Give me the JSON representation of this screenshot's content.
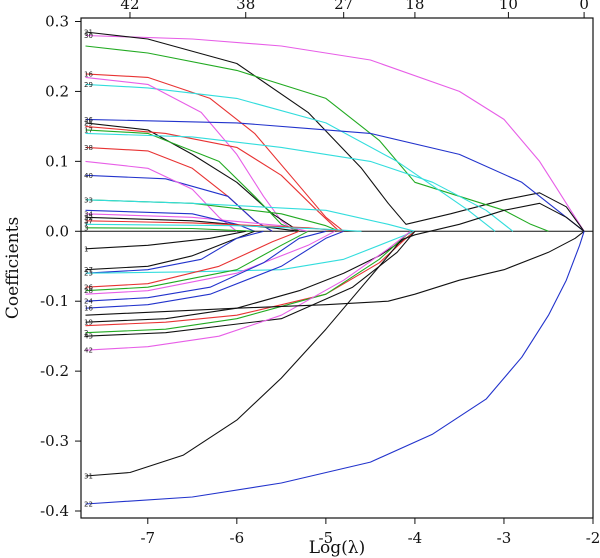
{
  "chart_data": {
    "type": "line",
    "title": "",
    "xlabel": "Log(λ)",
    "ylabel": "Coefficients",
    "xlim": [
      -7.75,
      -2.0
    ],
    "ylim": [
      -0.41,
      0.305
    ],
    "x_ticks": [
      "-7",
      "-6",
      "-5",
      "-4",
      "-3",
      "-2"
    ],
    "y_ticks": [
      "0.3",
      "0.2",
      "0.1",
      "0.0",
      "-0.1",
      "-0.2",
      "-0.3",
      "-0.4"
    ],
    "top_axis": {
      "label": "",
      "ticks": [
        {
          "x": -7.2,
          "label": "42"
        },
        {
          "x": -5.9,
          "label": "38"
        },
        {
          "x": -4.8,
          "label": "27"
        },
        {
          "x": -4.0,
          "label": "18"
        },
        {
          "x": -2.95,
          "label": "10"
        },
        {
          "x": -2.1,
          "label": "0"
        }
      ]
    },
    "grid": false,
    "legend": "none",
    "series": [
      {
        "name": "30",
        "color": "#e75ee7",
        "x": [
          -7.7,
          -6.5,
          -5.5,
          -4.5,
          -3.5,
          -3.0,
          -2.6,
          -2.4,
          -2.25,
          -2.1
        ],
        "values": [
          0.28,
          0.275,
          0.265,
          0.245,
          0.2,
          0.16,
          0.1,
          0.06,
          0.03,
          0.0
        ]
      },
      {
        "name": "21",
        "color": "#111111",
        "x": [
          -7.7,
          -7.0,
          -6.0,
          -5.2,
          -4.6,
          -4.3,
          -4.1,
          -3.6,
          -3.0,
          -2.6,
          -2.3,
          -2.1
        ],
        "values": [
          0.285,
          0.275,
          0.24,
          0.17,
          0.09,
          0.04,
          0.01,
          0.025,
          0.045,
          0.055,
          0.035,
          0.0
        ]
      },
      {
        "name": "",
        "color": "#22aa22",
        "x": [
          -7.7,
          -7.0,
          -6.0,
          -5.0,
          -4.4,
          -4.0,
          -3.5,
          -3.0,
          -2.7,
          -2.5
        ],
        "values": [
          0.265,
          0.255,
          0.23,
          0.19,
          0.13,
          0.07,
          0.05,
          0.03,
          0.01,
          0.0
        ]
      },
      {
        "name": "16",
        "color": "#e83333",
        "x": [
          -7.7,
          -7.0,
          -6.3,
          -5.8,
          -5.4,
          -5.0,
          -4.8
        ],
        "values": [
          0.225,
          0.22,
          0.19,
          0.14,
          0.08,
          0.02,
          0.0
        ]
      },
      {
        "name": "29",
        "color": "#33dddd",
        "x": [
          -7.7,
          -7.0,
          -6.0,
          -5.0,
          -4.2,
          -3.8,
          -3.4,
          -3.1
        ],
        "values": [
          0.21,
          0.205,
          0.19,
          0.155,
          0.1,
          0.065,
          0.03,
          0.0
        ]
      },
      {
        "name": "",
        "color": "#e75ee7",
        "x": [
          -7.7,
          -7.0,
          -6.4,
          -6.0,
          -5.7,
          -5.5,
          -5.35
        ],
        "values": [
          0.22,
          0.21,
          0.17,
          0.11,
          0.05,
          0.015,
          0.0
        ]
      },
      {
        "name": "36",
        "color": "#2233cc",
        "x": [
          -7.7,
          -6.0,
          -4.5,
          -3.5,
          -2.8,
          -2.4,
          -2.1
        ],
        "values": [
          0.16,
          0.155,
          0.14,
          0.11,
          0.07,
          0.03,
          0.0
        ]
      },
      {
        "name": "25",
        "color": "#111111",
        "x": [
          -7.7,
          -7.0,
          -6.5,
          -6.0,
          -5.6,
          -5.3
        ],
        "values": [
          0.155,
          0.145,
          0.11,
          0.07,
          0.025,
          0.0
        ]
      },
      {
        "name": "",
        "color": "#e83333",
        "x": [
          -7.7,
          -6.8,
          -6.0,
          -5.5,
          -5.1,
          -4.85
        ],
        "values": [
          0.15,
          0.14,
          0.12,
          0.08,
          0.03,
          0.0
        ]
      },
      {
        "name": "17",
        "color": "#22aa22",
        "x": [
          -7.7,
          -7.0,
          -6.2,
          -5.8,
          -5.5,
          -5.3
        ],
        "values": [
          0.145,
          0.14,
          0.1,
          0.05,
          0.01,
          0.0
        ]
      },
      {
        "name": "38",
        "color": "#e83333",
        "x": [
          -7.7,
          -7.0,
          -6.5,
          -6.1,
          -5.8,
          -5.6
        ],
        "values": [
          0.12,
          0.115,
          0.09,
          0.05,
          0.015,
          0.0
        ]
      },
      {
        "name": "",
        "color": "#33dddd",
        "x": [
          -7.7,
          -6.5,
          -5.5,
          -4.5,
          -3.8,
          -3.2,
          -2.9
        ],
        "values": [
          0.14,
          0.135,
          0.12,
          0.1,
          0.07,
          0.03,
          0.0
        ]
      },
      {
        "name": "40",
        "color": "#2233cc",
        "x": [
          -7.7,
          -6.8,
          -6.1,
          -5.8,
          -5.6
        ],
        "values": [
          0.08,
          0.075,
          0.05,
          0.015,
          0.0
        ]
      },
      {
        "name": "",
        "color": "#e75ee7",
        "x": [
          -7.7,
          -7.0,
          -6.5,
          -6.2,
          -6.0
        ],
        "values": [
          0.1,
          0.09,
          0.06,
          0.02,
          0.0
        ]
      },
      {
        "name": "33",
        "color": "#22aa22",
        "x": [
          -7.7,
          -6.5,
          -5.5,
          -5.0,
          -4.85
        ],
        "values": [
          0.045,
          0.04,
          0.025,
          0.008,
          0.0
        ]
      },
      {
        "name": "",
        "color": "#33dddd",
        "x": [
          -7.7,
          -6.5,
          -5.0,
          -4.3,
          -4.0
        ],
        "values": [
          0.045,
          0.04,
          0.03,
          0.01,
          0.0
        ]
      },
      {
        "name": "34",
        "color": "#e75ee7",
        "x": [
          -7.7,
          -6.5,
          -5.5,
          -5.2
        ],
        "values": [
          0.025,
          0.02,
          0.008,
          0.0
        ]
      },
      {
        "name": "",
        "color": "#2233cc",
        "x": [
          -7.7,
          -6.5,
          -6.0,
          -5.8
        ],
        "values": [
          0.03,
          0.025,
          0.01,
          0.0
        ]
      },
      {
        "name": "32",
        "color": "#111111",
        "x": [
          -7.7,
          -6.5,
          -5.6,
          -5.3
        ],
        "values": [
          0.02,
          0.015,
          0.005,
          0.0
        ]
      },
      {
        "name": "37",
        "color": "#e83333",
        "x": [
          -7.7,
          -6.5,
          -5.2,
          -4.8
        ],
        "values": [
          0.015,
          0.012,
          0.005,
          0.0
        ]
      },
      {
        "name": "7",
        "color": "#33dddd",
        "x": [
          -7.7,
          -6.0,
          -5.0,
          -4.6
        ],
        "values": [
          0.01,
          0.008,
          0.003,
          0.0
        ]
      },
      {
        "name": "3",
        "color": "#22aa22",
        "x": [
          -7.7,
          -6.5,
          -5.8
        ],
        "values": [
          0.005,
          0.004,
          0.0
        ]
      },
      {
        "name": "1",
        "color": "#111111",
        "x": [
          -7.7,
          -7.0,
          -6.3,
          -5.9
        ],
        "values": [
          -0.025,
          -0.02,
          -0.01,
          0.0
        ]
      },
      {
        "name": "27",
        "color": "#111111",
        "x": [
          -7.7,
          -7.0,
          -6.5,
          -6.0,
          -5.8
        ],
        "values": [
          -0.055,
          -0.05,
          -0.035,
          -0.01,
          0.0
        ]
      },
      {
        "name": "23",
        "color": "#2233cc",
        "x": [
          -7.7,
          -7.0,
          -6.4,
          -6.0,
          -5.7
        ],
        "values": [
          -0.06,
          -0.055,
          -0.04,
          -0.01,
          0.0
        ]
      },
      {
        "name": "",
        "color": "#33dddd",
        "x": [
          -7.7,
          -6.5,
          -5.5,
          -4.8,
          -4.2,
          -4.0
        ],
        "values": [
          -0.06,
          -0.058,
          -0.055,
          -0.04,
          -0.01,
          0.0
        ]
      },
      {
        "name": "26",
        "color": "#e83333",
        "x": [
          -7.7,
          -7.0,
          -6.2,
          -5.6,
          -5.3
        ],
        "values": [
          -0.08,
          -0.075,
          -0.05,
          -0.015,
          0.0
        ]
      },
      {
        "name": "28",
        "color": "#22aa22",
        "x": [
          -7.7,
          -7.0,
          -6.0,
          -5.5,
          -5.2
        ],
        "values": [
          -0.085,
          -0.08,
          -0.055,
          -0.02,
          0.0
        ]
      },
      {
        "name": "",
        "color": "#e75ee7",
        "x": [
          -7.7,
          -7.0,
          -6.0,
          -5.2,
          -4.9
        ],
        "values": [
          -0.09,
          -0.085,
          -0.06,
          -0.02,
          0.0
        ]
      },
      {
        "name": "24",
        "color": "#2233cc",
        "x": [
          -7.7,
          -7.0,
          -6.3,
          -5.7,
          -5.3,
          -5.0
        ],
        "values": [
          -0.1,
          -0.095,
          -0.08,
          -0.045,
          -0.01,
          0.0
        ]
      },
      {
        "name": "16",
        "color": "#2233cc",
        "x": [
          -7.7,
          -7.0,
          -6.3,
          -5.5,
          -5.0,
          -4.8
        ],
        "values": [
          -0.11,
          -0.105,
          -0.09,
          -0.05,
          -0.01,
          0.0
        ]
      },
      {
        "name": "19",
        "color": "#111111",
        "x": [
          -7.7,
          -6.8,
          -6.0,
          -5.3,
          -4.8,
          -4.4,
          -4.1,
          -4.0
        ],
        "values": [
          -0.13,
          -0.125,
          -0.11,
          -0.085,
          -0.06,
          -0.035,
          -0.01,
          0.0
        ]
      },
      {
        "name": "",
        "color": "#e83333",
        "x": [
          -7.7,
          -6.8,
          -6.0,
          -5.0,
          -4.4,
          -4.1,
          -4.0
        ],
        "values": [
          -0.135,
          -0.13,
          -0.12,
          -0.09,
          -0.045,
          -0.01,
          0.0
        ]
      },
      {
        "name": "2",
        "color": "#22aa22",
        "x": [
          -7.7,
          -6.8,
          -6.0,
          -5.0,
          -4.4,
          -4.05
        ],
        "values": [
          -0.145,
          -0.14,
          -0.125,
          -0.09,
          -0.04,
          0.0
        ]
      },
      {
        "name": "43",
        "color": "#111111",
        "x": [
          -7.7,
          -6.8,
          -5.5,
          -4.7,
          -4.2,
          -4.0
        ],
        "values": [
          -0.15,
          -0.145,
          -0.125,
          -0.08,
          -0.03,
          0.0
        ]
      },
      {
        "name": "42",
        "color": "#e75ee7",
        "x": [
          -7.7,
          -7.0,
          -6.2,
          -5.5,
          -4.8,
          -4.3,
          -4.05
        ],
        "values": [
          -0.17,
          -0.165,
          -0.15,
          -0.12,
          -0.07,
          -0.025,
          0.0
        ]
      },
      {
        "name": "",
        "color": "#111111",
        "x": [
          -7.7,
          -6.0,
          -5.0,
          -4.3,
          -4.0,
          -3.5,
          -3.0,
          -2.5,
          -2.2,
          -2.1
        ],
        "values": [
          -0.12,
          -0.11,
          -0.105,
          -0.1,
          -0.09,
          -0.07,
          -0.055,
          -0.03,
          -0.01,
          0.0
        ]
      },
      {
        "name": "31",
        "color": "#111111",
        "x": [
          -7.7,
          -7.2,
          -6.6,
          -6.0,
          -5.5,
          -5.0,
          -4.6,
          -4.3,
          -4.15,
          -4.0,
          -3.5,
          -3.0,
          -2.6,
          -2.3,
          -2.1
        ],
        "values": [
          -0.35,
          -0.345,
          -0.32,
          -0.27,
          -0.21,
          -0.14,
          -0.08,
          -0.035,
          -0.012,
          -0.005,
          0.01,
          0.03,
          0.04,
          0.02,
          0.0
        ]
      },
      {
        "name": "22",
        "color": "#2233cc",
        "x": [
          -7.7,
          -6.5,
          -5.5,
          -4.5,
          -3.8,
          -3.2,
          -2.8,
          -2.5,
          -2.3,
          -2.15,
          -2.1
        ],
        "values": [
          -0.39,
          -0.38,
          -0.36,
          -0.33,
          -0.29,
          -0.24,
          -0.18,
          -0.12,
          -0.07,
          -0.02,
          0.0
        ]
      }
    ]
  }
}
